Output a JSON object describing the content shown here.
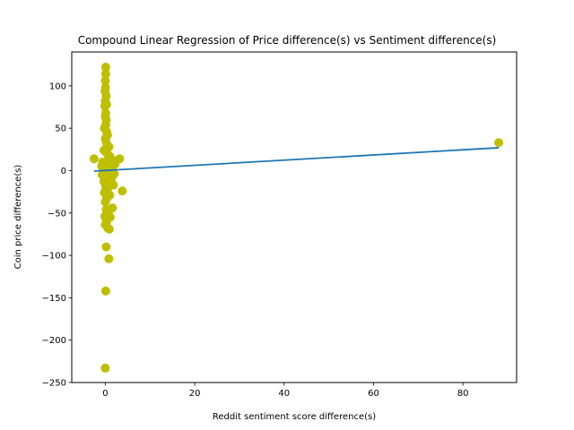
{
  "chart_data": {
    "type": "scatter",
    "title": "Compound Linear Regression of Price difference(s) vs Sentiment difference(s)",
    "xlabel": "Reddit sentiment score difference(s)",
    "ylabel": "Coin price difference(s)",
    "xlim": [
      -7.5,
      92.0
    ],
    "ylim": [
      -250,
      140
    ],
    "xticks": [
      0,
      20,
      40,
      60,
      80
    ],
    "yticks": [
      -250,
      -200,
      -150,
      -100,
      -50,
      0,
      50,
      100
    ],
    "grid": false,
    "legend": "none",
    "colors": {
      "points": "#bfbf00",
      "line": "#1f77b4"
    },
    "series": [
      {
        "kind": "scatter",
        "points": [
          [
            0.1,
            122
          ],
          [
            0.1,
            114
          ],
          [
            0.0,
            106
          ],
          [
            0.05,
            98
          ],
          [
            -0.05,
            94
          ],
          [
            0.2,
            88
          ],
          [
            0.0,
            82
          ],
          [
            0.3,
            78
          ],
          [
            -0.1,
            76
          ],
          [
            0.1,
            68
          ],
          [
            0.0,
            64
          ],
          [
            0.2,
            60
          ],
          [
            0.1,
            54
          ],
          [
            -0.2,
            50
          ],
          [
            0.3,
            46
          ],
          [
            0.5,
            42
          ],
          [
            0.0,
            38
          ],
          [
            0.2,
            34
          ],
          [
            0.4,
            30
          ],
          [
            0.8,
            28
          ],
          [
            -0.3,
            24
          ],
          [
            0.1,
            22
          ],
          [
            0.6,
            19
          ],
          [
            1.0,
            17
          ],
          [
            -2.5,
            14
          ],
          [
            3.2,
            14
          ],
          [
            1.8,
            12
          ],
          [
            0.4,
            11
          ],
          [
            -0.6,
            10
          ],
          [
            0.9,
            9
          ],
          [
            2.2,
            8
          ],
          [
            0.0,
            7
          ],
          [
            1.2,
            6
          ],
          [
            -0.8,
            5
          ],
          [
            0.3,
            4
          ],
          [
            1.6,
            3
          ],
          [
            0.7,
            2
          ],
          [
            0.0,
            1
          ],
          [
            -0.4,
            0
          ],
          [
            1.1,
            -1
          ],
          [
            0.2,
            -3
          ],
          [
            2.0,
            -4
          ],
          [
            -0.7,
            -5
          ],
          [
            0.6,
            -7
          ],
          [
            1.4,
            -9
          ],
          [
            0.0,
            -11
          ],
          [
            -0.3,
            -13
          ],
          [
            0.9,
            -15
          ],
          [
            1.8,
            -17
          ],
          [
            0.1,
            -19
          ],
          [
            3.8,
            -24
          ],
          [
            0.5,
            -22
          ],
          [
            -0.2,
            -26
          ],
          [
            1.0,
            -29
          ],
          [
            0.3,
            -33
          ],
          [
            0.0,
            -37
          ],
          [
            1.6,
            -44
          ],
          [
            0.2,
            -46
          ],
          [
            0.7,
            -50
          ],
          [
            -0.1,
            -54
          ],
          [
            1.1,
            -55
          ],
          [
            0.3,
            -60
          ],
          [
            0.0,
            -64
          ],
          [
            0.6,
            -68
          ],
          [
            0.9,
            -69
          ],
          [
            0.2,
            -90
          ],
          [
            0.8,
            -104
          ],
          [
            0.1,
            -142
          ],
          [
            0.0,
            -233
          ],
          [
            88.0,
            33
          ]
        ]
      },
      {
        "kind": "line",
        "name": "regression",
        "x": [
          -2.5,
          88.0
        ],
        "y": [
          -0.6,
          27.0
        ]
      }
    ]
  }
}
